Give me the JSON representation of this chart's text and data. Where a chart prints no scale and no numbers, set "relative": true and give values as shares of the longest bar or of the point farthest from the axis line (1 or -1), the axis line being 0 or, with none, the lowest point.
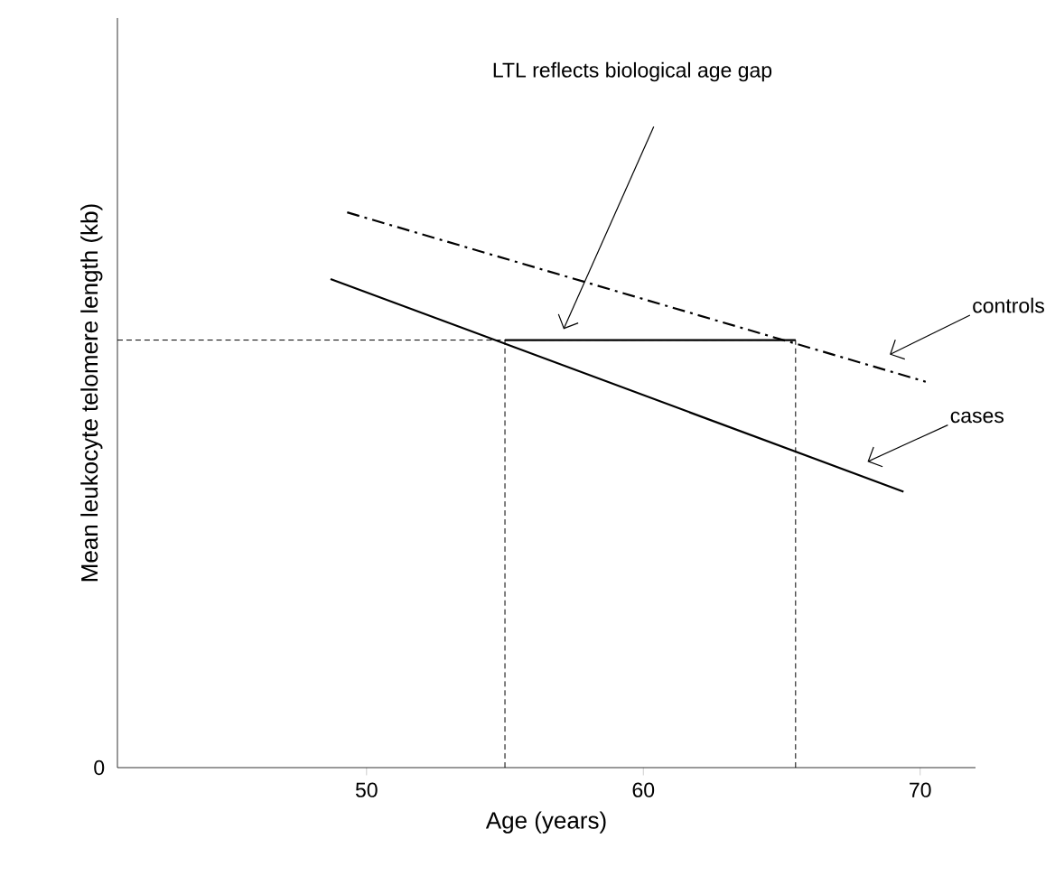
{
  "chart_data": {
    "type": "line",
    "relative": true,
    "xlabel": "Age (years)",
    "ylabel": "Mean leukocyte telomere length (kb)",
    "xlim": [
      41,
      72
    ],
    "xticks": [
      50,
      60,
      70
    ],
    "grid": false,
    "legend": false,
    "marker": "none",
    "annotations": [
      "0",
      "LTL reflects biological age gap"
    ],
    "series": [
      {
        "name": "controls",
        "color": "#000000",
        "line_style": "dashdot",
        "x": [
          49.3,
          70.2
        ],
        "values": [
          1,
          0.695
        ]
      },
      {
        "name": "cases",
        "color": "#000000",
        "line_style": "solid",
        "x": [
          48.7,
          69.4
        ],
        "values": [
          0.88,
          0.497
        ]
      },
      {
        "color": "#000000",
        "line_style": "dashed",
        "x": [
          41,
          65.5
        ],
        "values": [
          0.77,
          0.77
        ]
      },
      {
        "color": "#000000",
        "line_style": "dashed",
        "x": [
          55,
          55
        ],
        "values": [
          0,
          0.77
        ]
      },
      {
        "color": "#000000",
        "line_style": "dashed",
        "x": [
          65.5,
          65.5
        ],
        "values": [
          0,
          0.77
        ]
      },
      {
        "color": "#000000",
        "line_style": "solid",
        "x": [
          55,
          65.5
        ],
        "values": [
          0.77,
          0.77
        ]
      }
    ]
  }
}
